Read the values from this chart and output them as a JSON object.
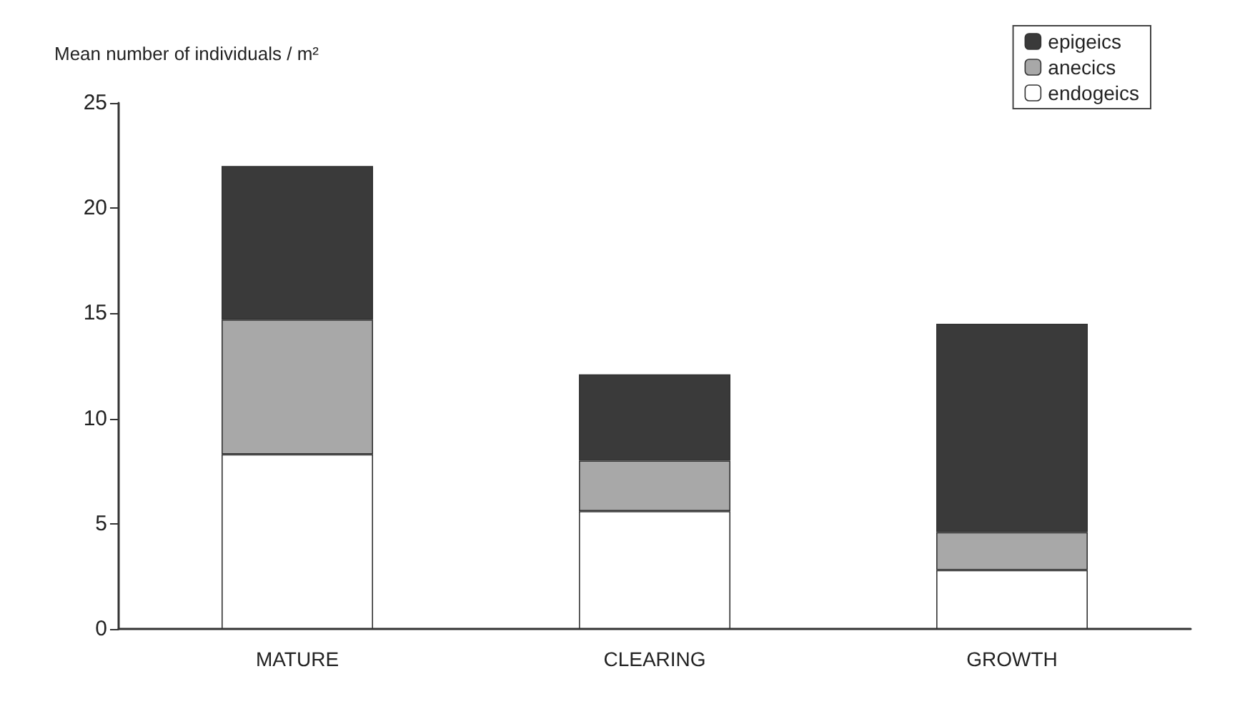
{
  "chart_data": {
    "type": "bar",
    "stacked": true,
    "ylabel": "Mean number of individuals / m²",
    "categories": [
      "MATURE",
      "CLEARING",
      "GROWTH"
    ],
    "series": [
      {
        "name": "endogeics",
        "color": "#ffffff",
        "values": [
          8.3,
          5.6,
          2.8
        ]
      },
      {
        "name": "anecics",
        "color": "#a8a8a8",
        "values": [
          6.4,
          2.4,
          1.8
        ]
      },
      {
        "name": "epigeics",
        "color": "#3a3a3a",
        "values": [
          7.3,
          4.1,
          9.9
        ]
      }
    ],
    "ylim": [
      0,
      25
    ],
    "yticks": [
      0,
      5,
      10,
      15,
      20,
      25
    ],
    "grid": false,
    "legend": "top right"
  }
}
